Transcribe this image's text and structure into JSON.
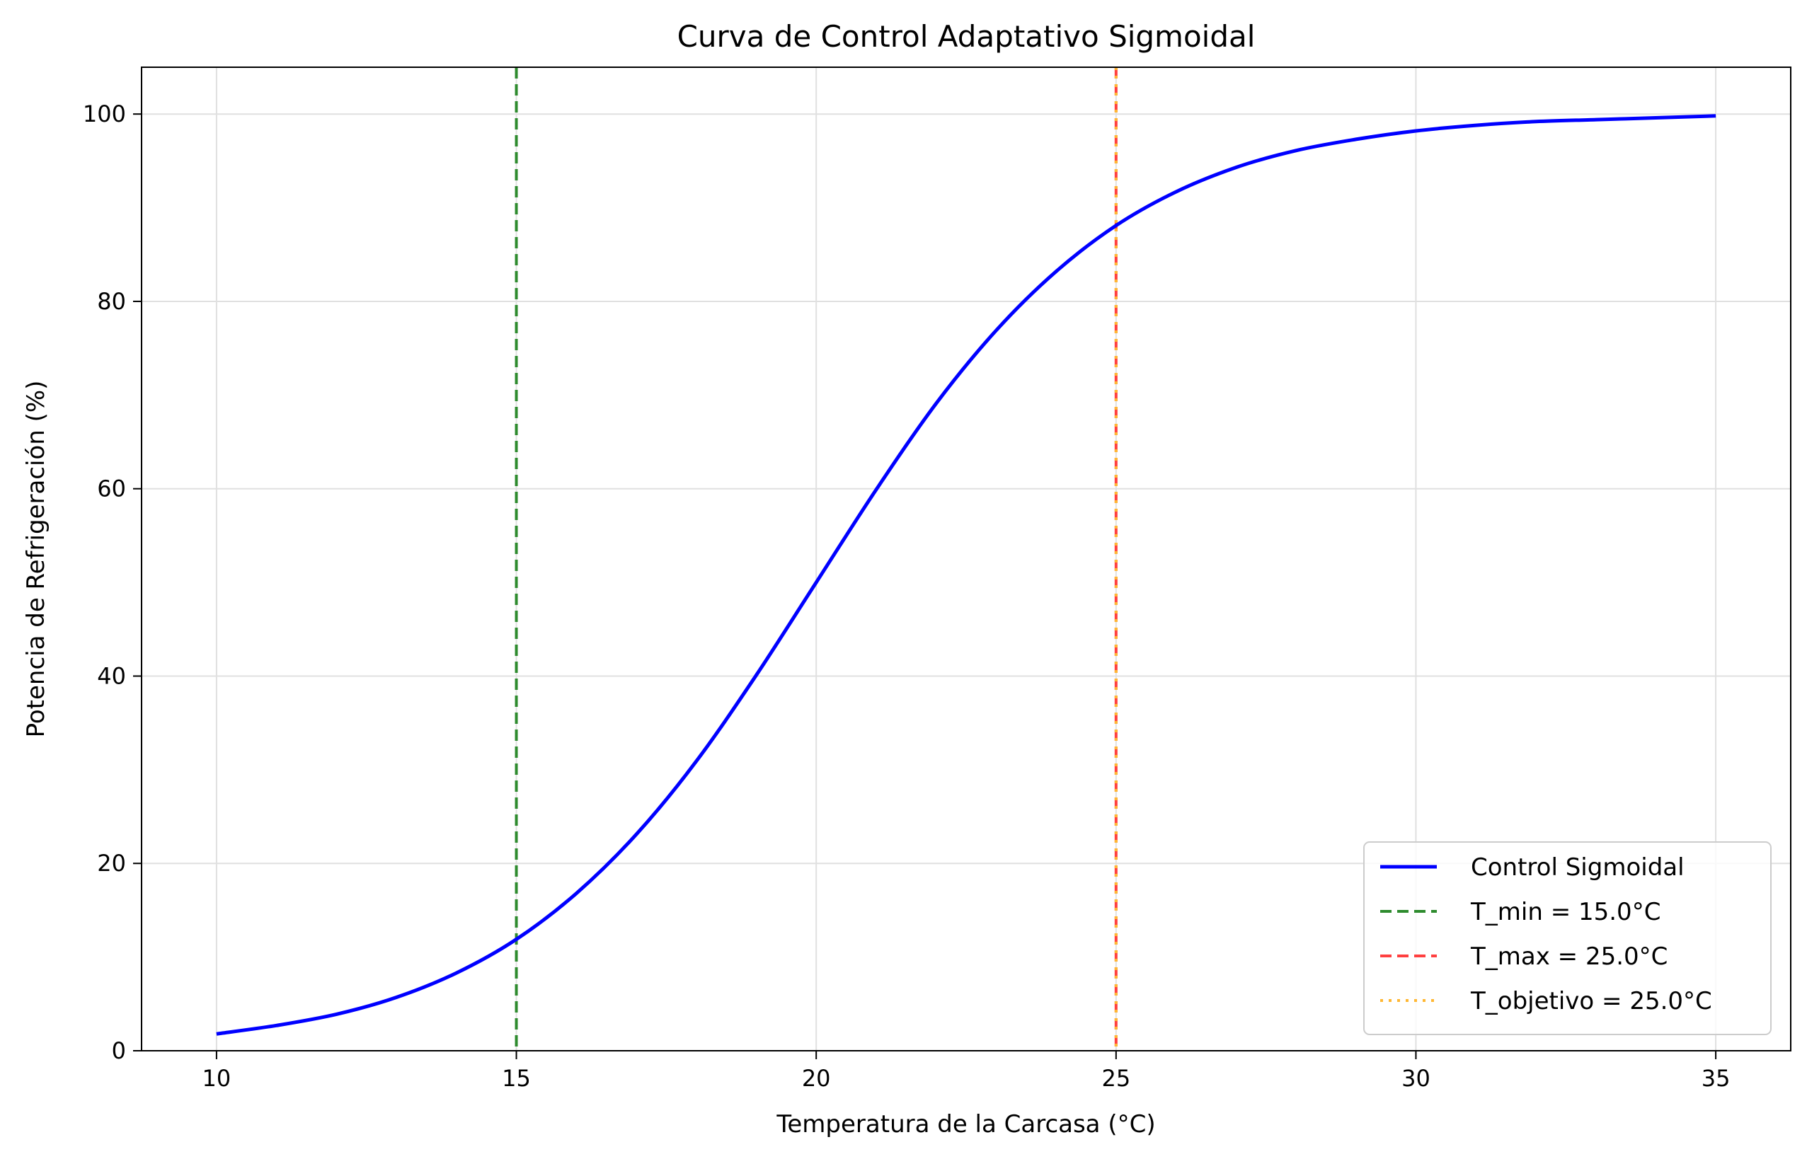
{
  "chart_data": {
    "type": "line",
    "title": "Curva de Control Adaptativo Sigmoidal",
    "xlabel": "Temperatura de la Carcasa (°C)",
    "ylabel": "Potencia de Refrigeración (%)",
    "xlim": [
      8.75,
      36.25
    ],
    "ylim": [
      0,
      105
    ],
    "xticks": [
      10,
      15,
      20,
      25,
      30,
      35
    ],
    "yticks": [
      0,
      20,
      40,
      60,
      80,
      100
    ],
    "grid": true,
    "legend_position": "lower-right",
    "series": [
      {
        "name": "Control Sigmoidal",
        "style": "solid",
        "color": "#0000ff",
        "x": [
          10,
          11,
          12,
          13,
          14,
          15,
          16,
          17,
          18,
          19,
          20,
          21,
          22,
          23,
          24,
          25,
          26,
          27,
          28,
          29,
          30,
          31,
          32,
          33,
          34,
          35
        ],
        "y": [
          1.8,
          2.7,
          3.9,
          5.7,
          8.3,
          11.9,
          16.8,
          23.1,
          30.9,
          40.1,
          50.0,
          59.9,
          69.1,
          76.9,
          83.2,
          88.1,
          91.7,
          94.3,
          96.1,
          97.3,
          98.2,
          98.8,
          99.2,
          99.4,
          99.6,
          99.8
        ]
      }
    ],
    "vlines": [
      {
        "name": "T_min = 15.0°C",
        "x": 15.0,
        "style": "dashed",
        "color": "#2e8b2e"
      },
      {
        "name": "T_max = 25.0°C",
        "x": 25.0,
        "style": "dashed",
        "color": "#ff4040"
      },
      {
        "name": "T_objetivo = 25.0°C",
        "x": 25.0,
        "style": "dotted",
        "color": "#ffb733"
      }
    ]
  }
}
